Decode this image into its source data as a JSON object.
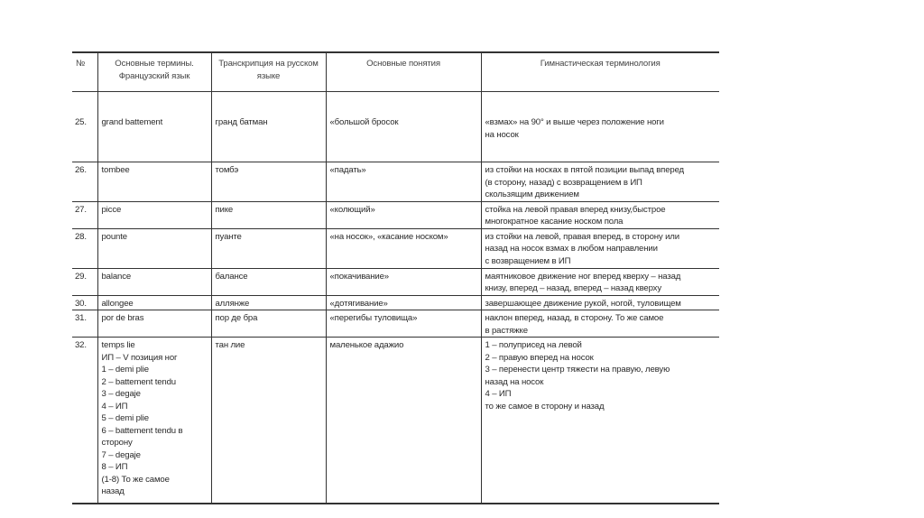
{
  "table": {
    "headers": [
      "№",
      "Основные термины. Французский язык",
      "Транскрипция на русском языке",
      "Основные понятия",
      "Гимнастическая терминология"
    ],
    "rows": [
      {
        "num": "25.",
        "fr": [
          "grand battement"
        ],
        "ru": "гранд батман",
        "concept": "«большой бросок",
        "gym": [
          "«взмах» на 90° и выше через положение ноги",
          "на носок"
        ],
        "h": 55
      },
      {
        "num": "26.",
        "fr": [
          "tombee"
        ],
        "ru": "томбэ",
        "concept": "«падать»",
        "gym": [
          "из стойки на носках в пятой позиции выпад вперед",
          "(в сторону, назад) с возвращением в ИП",
          "скользящим движением"
        ],
        "h": 41
      },
      {
        "num": "27.",
        "fr": [
          "picce"
        ],
        "ru": "пике",
        "concept": "«колющий»",
        "gym": [
          "стойка на левой правая вперед книзу,быстрое",
          "многократное касание носком пола"
        ],
        "h": 27
      },
      {
        "num": "28.",
        "fr": [
          "pounte"
        ],
        "ru": "пуанте",
        "concept": "«на носок», «касание носком»",
        "gym": [
          "из стойки на левой, правая вперед, в сторону или",
          "назад на носок взмах в любом направлении",
          "с возвращением в ИП"
        ],
        "h": 44
      },
      {
        "num": "29.",
        "fr": [
          "balance"
        ],
        "ru": "балансе",
        "concept": "«покачивание»",
        "gym": [
          "маятниковое движение ног вперед кверху – назад",
          "книзу, вперед – назад, вперед – назад кверху"
        ],
        "h": 27
      },
      {
        "num": "30.",
        "fr": [
          "allongee"
        ],
        "ru": "аллянже",
        "concept": "«дотягивание»",
        "gym": [
          "завершающее движение рукой, ногой, туловищем"
        ],
        "h": 15
      },
      {
        "num": "31.",
        "fr": [
          "por de bras"
        ],
        "ru": "пор де бра",
        "concept": "«перегибы туловища»",
        "gym": [
          "наклон вперед, назад, в сторону. То же самое",
          "в растяжке"
        ],
        "h": 28
      },
      {
        "num": "32.",
        "fr": [
          "temps lie",
          "ИП – V позиция ног",
          "1 – demi plie",
          "2 – battement tendu",
          "3 – degaje",
          "4 – ИП",
          "5 – demi plie",
          "6 – battement tendu в",
          "сторону",
          "7 – degaje",
          "8 – ИП",
          "(1-8) То же самое",
          "назад"
        ],
        "ru": "тан лие",
        "concept": "маленькое адажио",
        "gym": [
          "1 – полуприсед на левой",
          "2 – правую вперед на носок",
          "3 – перенести центр тяжести на правую, левую",
          "назад на носок",
          "4 – ИП",
          "то же самое в сторону и назад"
        ],
        "h": 184
      }
    ]
  }
}
